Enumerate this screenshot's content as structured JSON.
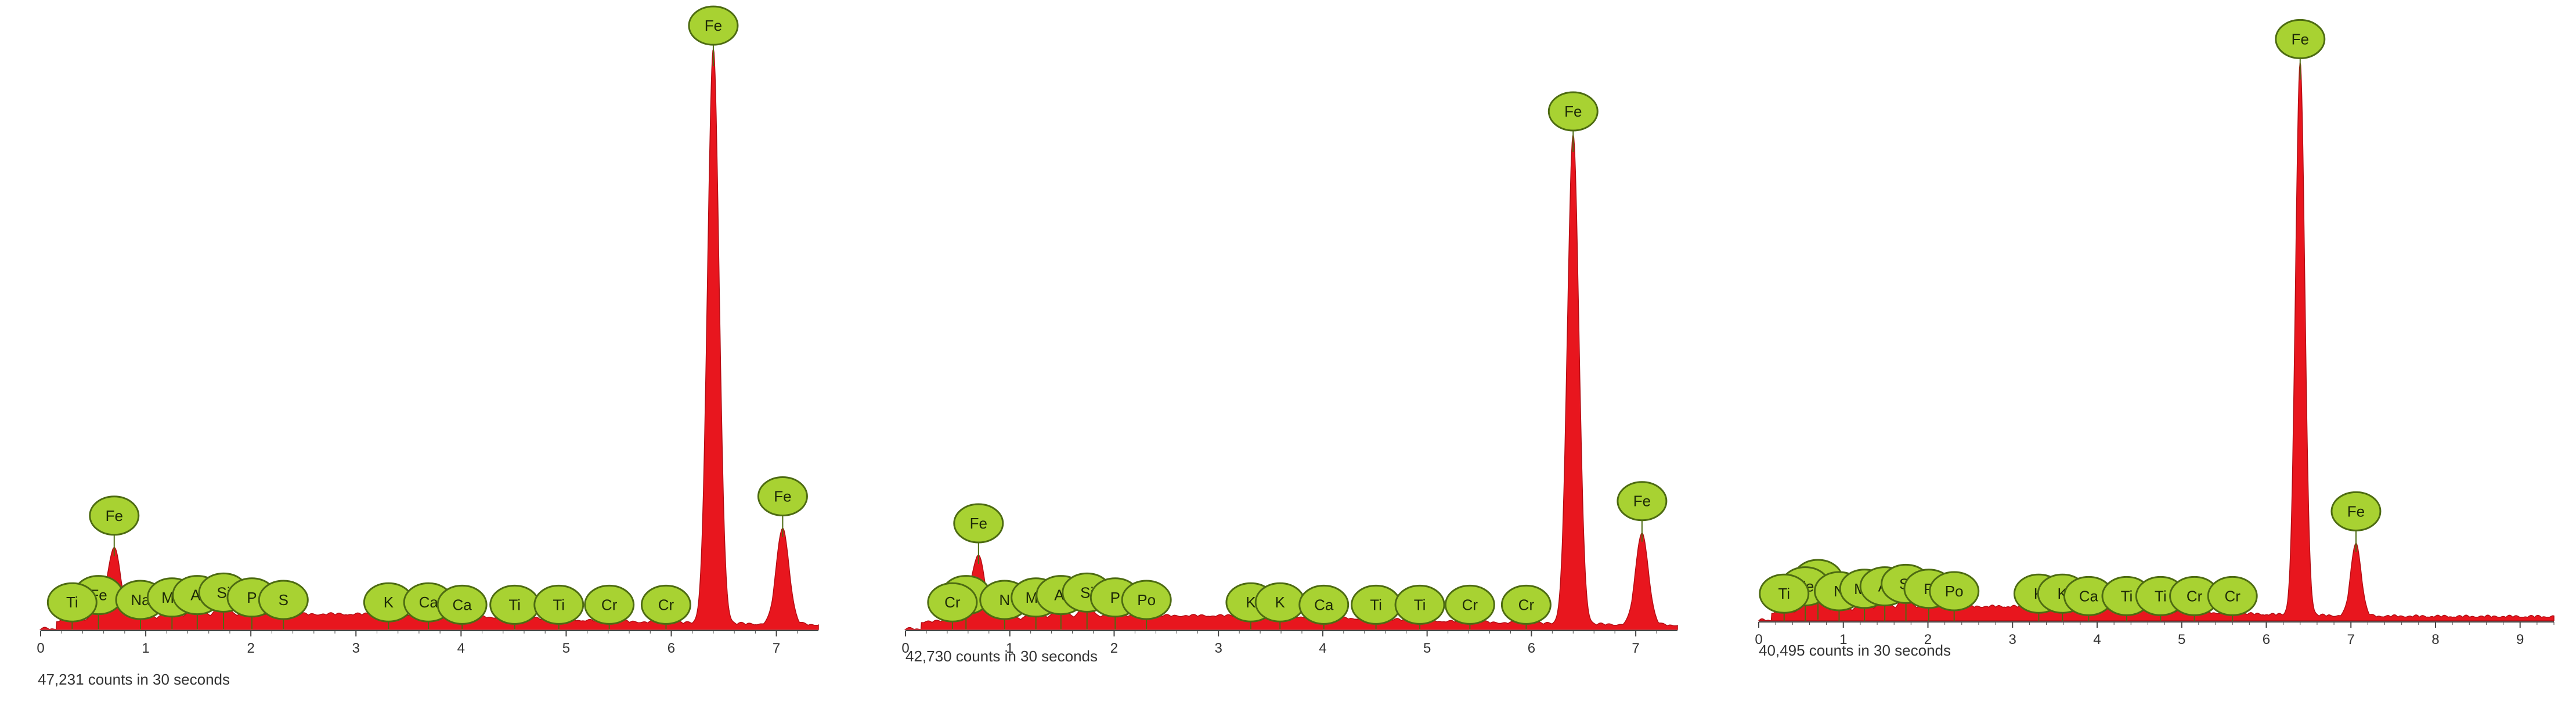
{
  "figure": {
    "background": "#ffffff",
    "spectrum_color": "#e8161e",
    "axis_color": "#444444",
    "marker_fill": "#a8d232",
    "marker_stroke": "#4d6b12",
    "marker_text_color": "#1e2a08"
  },
  "chart_data": [
    {
      "type": "area",
      "xlim": [
        0,
        7.4
      ],
      "x_ticks": [
        "0",
        "1",
        "2",
        "3",
        "4",
        "5",
        "6",
        "7"
      ],
      "caption": "47,231 counts in 30 seconds",
      "peak_labels": [
        "Fe",
        "Fe",
        "Fe",
        "Ti",
        "Na",
        "Mg",
        "Al",
        "Si",
        "P",
        "S",
        "K",
        "Ca",
        "Ca",
        "Ti",
        "Ti",
        "Cr",
        "Cr",
        "Fe"
      ],
      "peak_positions": [
        6.4,
        0.7,
        0.55,
        0.3,
        0.95,
        1.25,
        1.49,
        1.74,
        2.01,
        2.31,
        3.31,
        3.69,
        4.01,
        4.51,
        4.93,
        5.41,
        5.95,
        7.06
      ],
      "peak_heights": [
        0.95,
        0.12,
        0.07,
        0.04,
        0.05,
        0.06,
        0.07,
        0.08,
        0.06,
        0.05,
        0.04,
        0.04,
        0.03,
        0.03,
        0.03,
        0.03,
        0.03,
        0.16
      ]
    },
    {
      "type": "area",
      "xlim": [
        0,
        7.4
      ],
      "x_ticks": [
        "0",
        "1",
        "2",
        "3",
        "4",
        "5",
        "6",
        "7"
      ],
      "caption": "42,730 counts in 30 seconds",
      "peak_labels": [
        "Fe",
        "Fe",
        "Si",
        "Cr",
        "N",
        "Mg",
        "Al",
        "Si",
        "P",
        "Po",
        "K",
        "K",
        "Ca",
        "Ti",
        "Ti",
        "Cr",
        "Cr",
        "Fe"
      ],
      "peak_positions": [
        6.4,
        0.7,
        0.58,
        0.45,
        0.95,
        1.25,
        1.49,
        1.74,
        2.01,
        2.31,
        3.31,
        3.59,
        4.01,
        4.51,
        4.93,
        5.41,
        5.95,
        7.06
      ],
      "peak_heights": [
        0.9,
        0.12,
        0.07,
        0.04,
        0.05,
        0.06,
        0.07,
        0.08,
        0.06,
        0.05,
        0.04,
        0.04,
        0.03,
        0.03,
        0.03,
        0.03,
        0.03,
        0.17
      ]
    },
    {
      "type": "area",
      "xlim": [
        0,
        9.4
      ],
      "x_ticks": [
        "0",
        "1",
        "2",
        "3",
        "4",
        "5",
        "6",
        "7",
        "8",
        "9"
      ],
      "caption": "40,495 counts in 30 seconds",
      "peak_labels": [
        "Fe",
        "Fe",
        "Fe",
        "Ti",
        "N",
        "Mg",
        "Al",
        "Si",
        "P",
        "Po",
        "K",
        "K",
        "Ca",
        "Ti",
        "Ti",
        "Cr",
        "Cr",
        "Fe"
      ],
      "peak_positions": [
        6.4,
        0.7,
        0.55,
        0.3,
        0.95,
        1.25,
        1.49,
        1.74,
        2.01,
        2.31,
        3.31,
        3.59,
        3.9,
        4.35,
        4.75,
        5.15,
        5.6,
        7.06
      ],
      "peak_heights": [
        0.98,
        0.1,
        0.07,
        0.04,
        0.05,
        0.06,
        0.07,
        0.08,
        0.06,
        0.05,
        0.04,
        0.04,
        0.03,
        0.03,
        0.03,
        0.03,
        0.03,
        0.13
      ]
    }
  ]
}
